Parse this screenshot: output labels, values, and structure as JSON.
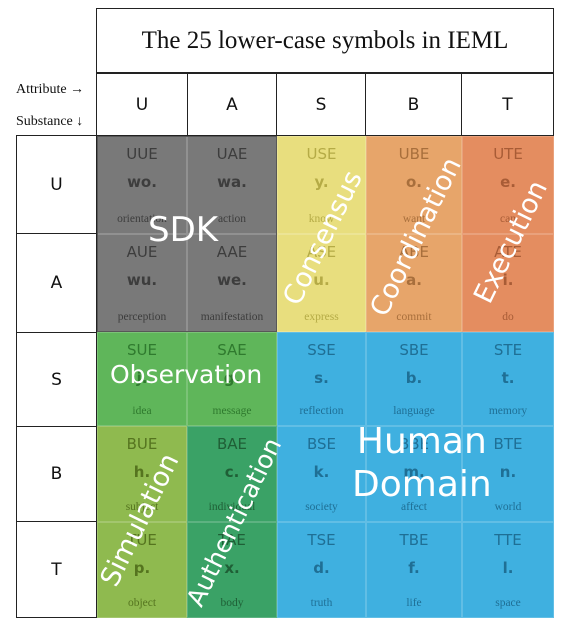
{
  "title": "The 25 lower-case symbols in IEML",
  "axis": {
    "attribute": "Attribute →",
    "substance": "Substance ↓"
  },
  "columns": [
    "U",
    "A",
    "S",
    "B",
    "T"
  ],
  "rows": [
    "U",
    "A",
    "S",
    "B",
    "T"
  ],
  "cells": [
    [
      {
        "code": "UUE",
        "symbol": "wo.",
        "word": "orientation"
      },
      {
        "code": "UAE",
        "symbol": "wa.",
        "word": "action"
      },
      {
        "code": "USE",
        "symbol": "y.",
        "word": "know"
      },
      {
        "code": "UBE",
        "symbol": "o.",
        "word": "want"
      },
      {
        "code": "UTE",
        "symbol": "e.",
        "word": "can"
      }
    ],
    [
      {
        "code": "AUE",
        "symbol": "wu.",
        "word": "perception"
      },
      {
        "code": "AAE",
        "symbol": "we.",
        "word": "manifestation"
      },
      {
        "code": "ASE",
        "symbol": "u.",
        "word": "express"
      },
      {
        "code": "ABE",
        "symbol": "a.",
        "word": "commit"
      },
      {
        "code": "ATE",
        "symbol": "i.",
        "word": "do"
      }
    ],
    [
      {
        "code": "SUE",
        "symbol": "j.",
        "word": "idea"
      },
      {
        "code": "SAE",
        "symbol": "g.",
        "word": "message"
      },
      {
        "code": "SSE",
        "symbol": "s.",
        "word": "reflection"
      },
      {
        "code": "SBE",
        "symbol": "b.",
        "word": "language"
      },
      {
        "code": "STE",
        "symbol": "t.",
        "word": "memory"
      }
    ],
    [
      {
        "code": "BUE",
        "symbol": "h.",
        "word": "subject"
      },
      {
        "code": "BAE",
        "symbol": "c.",
        "word": "individual"
      },
      {
        "code": "BSE",
        "symbol": "k.",
        "word": "society"
      },
      {
        "code": "BBE",
        "symbol": "m.",
        "word": "affect"
      },
      {
        "code": "BTE",
        "symbol": "n.",
        "word": "world"
      }
    ],
    [
      {
        "code": "TUE",
        "symbol": "p.",
        "word": "object"
      },
      {
        "code": "TAE",
        "symbol": "x.",
        "word": "body"
      },
      {
        "code": "TSE",
        "symbol": "d.",
        "word": "truth"
      },
      {
        "code": "TBE",
        "symbol": "f.",
        "word": "life"
      },
      {
        "code": "TTE",
        "symbol": "l.",
        "word": "space"
      }
    ]
  ],
  "regions": {
    "sdk": "SDK",
    "consensus": "Consensus",
    "coordination": "Coordination",
    "execution": "Execution",
    "observation": "Observation",
    "simulation": "Simulation",
    "authentication": "Authentication",
    "human_domain": [
      "Human",
      "Domain"
    ]
  },
  "colors": {
    "sdk": "#797979",
    "consensus": "#e8de7e",
    "coordination": "#e7a56a",
    "execution": "#e48d60",
    "observation": "#5fb65a",
    "simulation": "#8fba4f",
    "authentication": "#3aa266",
    "human_domain": "#3fb0e0"
  }
}
